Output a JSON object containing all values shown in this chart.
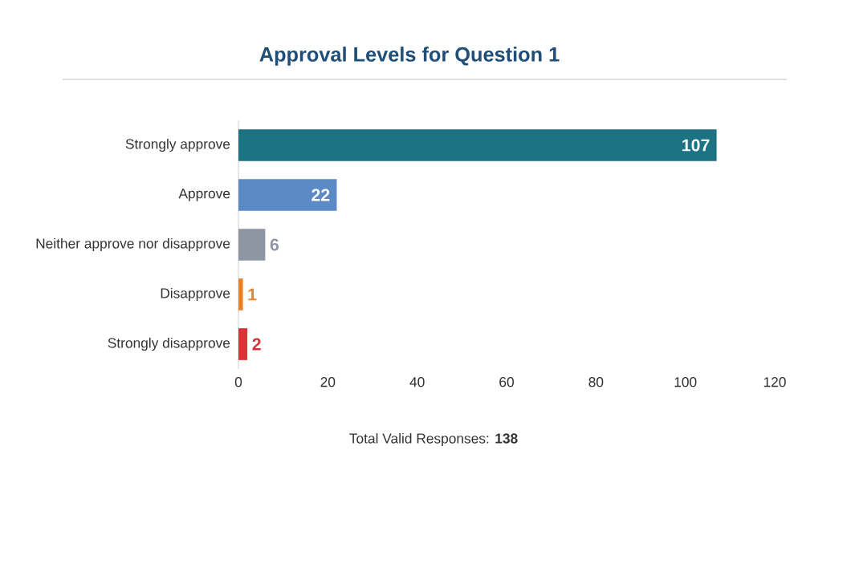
{
  "chart_data": {
    "type": "bar",
    "orientation": "horizontal",
    "title": "Approval Levels for Question 1",
    "categories": [
      "Strongly approve",
      "Approve",
      "Neither approve nor disapprove",
      "Disapprove",
      "Strongly disapprove"
    ],
    "values": [
      107,
      22,
      6,
      1,
      2
    ],
    "colors": [
      "#1b7282",
      "#5b8ac6",
      "#8f96a3",
      "#e8812c",
      "#d93337"
    ],
    "xlim": [
      0,
      120
    ],
    "xticks": [
      0,
      20,
      40,
      60,
      80,
      100,
      120
    ],
    "data_labels": true,
    "annotations": [
      "Total Valid Responses: **138**"
    ]
  }
}
